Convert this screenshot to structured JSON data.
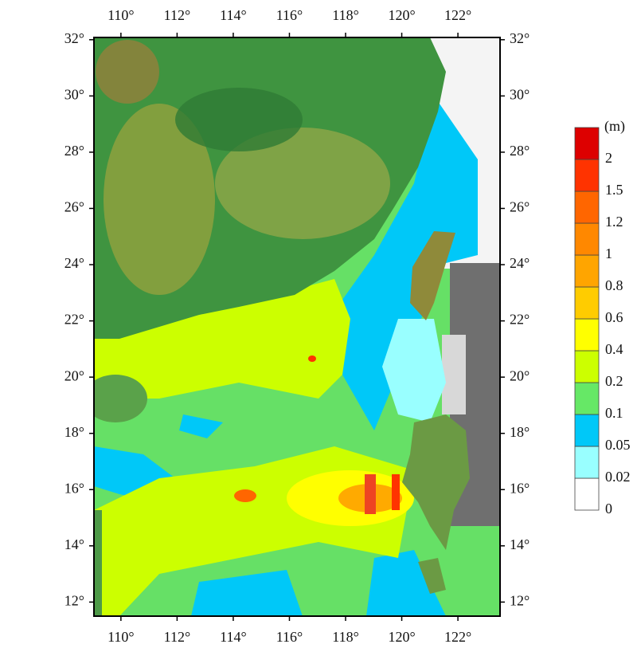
{
  "map": {
    "xlim": [
      109.04,
      123.5
    ],
    "ylim": [
      11.5,
      32.08
    ],
    "xticks": [
      {
        "value": 110,
        "label": "110°"
      },
      {
        "value": 112,
        "label": "112°"
      },
      {
        "value": 114,
        "label": "114°"
      },
      {
        "value": 116,
        "label": "116°"
      },
      {
        "value": 118,
        "label": "118°"
      },
      {
        "value": 120,
        "label": "120°"
      },
      {
        "value": 122,
        "label": "122°"
      }
    ],
    "yticks": [
      {
        "value": 12,
        "label": "12°"
      },
      {
        "value": 14,
        "label": "14°"
      },
      {
        "value": 16,
        "label": "16°"
      },
      {
        "value": 18,
        "label": "18°"
      },
      {
        "value": 20,
        "label": "20°"
      },
      {
        "value": 22,
        "label": "22°"
      },
      {
        "value": 24,
        "label": "24°"
      },
      {
        "value": 26,
        "label": "26°"
      },
      {
        "value": 28,
        "label": "28°"
      },
      {
        "value": 30,
        "label": "30°"
      },
      {
        "value": 32,
        "label": "32°"
      }
    ]
  },
  "colorbar": {
    "unit": "(m)",
    "levels": [
      0,
      0.02,
      0.05,
      0.1,
      0.2,
      0.4,
      0.6,
      0.8,
      1,
      1.2,
      1.5,
      2
    ],
    "colors": [
      "#ffffff",
      "#99ffff",
      "#00c8f8",
      "#66e866",
      "#ccff00",
      "#ffff00",
      "#ffcc00",
      "#ffa500",
      "#ff8800",
      "#ff6600",
      "#ff3300",
      "#dd0000"
    ]
  }
}
